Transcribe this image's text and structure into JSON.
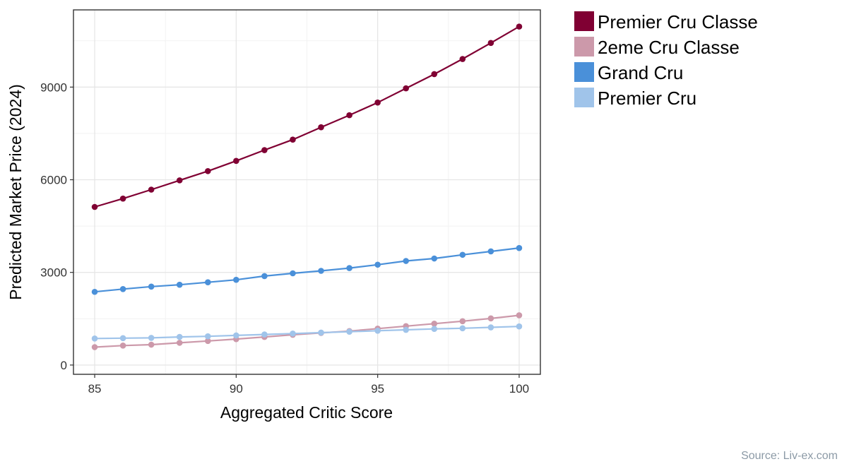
{
  "chart_data": {
    "type": "line",
    "xlabel": "Aggregated Critic Score",
    "ylabel": "Predicted Market Price (2024)",
    "xlim": [
      84.25,
      100.75
    ],
    "ylim": [
      -300,
      11500
    ],
    "x_ticks": [
      85,
      90,
      95,
      100
    ],
    "y_ticks": [
      0,
      3000,
      6000,
      9000
    ],
    "grid": true,
    "legend_position": "right",
    "x": [
      85,
      86,
      87,
      88,
      89,
      90,
      91,
      92,
      93,
      94,
      95,
      96,
      97,
      98,
      99,
      100
    ],
    "series": [
      {
        "name": "Premier Cru Classe",
        "color": "#800033",
        "values": [
          5120,
          5390,
          5680,
          5980,
          6280,
          6610,
          6960,
          7300,
          7700,
          8090,
          8500,
          8960,
          9420,
          9910,
          10430,
          10960
        ]
      },
      {
        "name": "2eme Cru Classe",
        "color": "#cc99aa",
        "values": [
          580,
          630,
          660,
          720,
          780,
          840,
          910,
          980,
          1040,
          1100,
          1180,
          1260,
          1340,
          1420,
          1510,
          1610
        ]
      },
      {
        "name": "Grand Cru",
        "color": "#4a90d9",
        "values": [
          2370,
          2460,
          2540,
          2600,
          2680,
          2760,
          2880,
          2970,
          3050,
          3140,
          3250,
          3370,
          3450,
          3570,
          3680,
          3790
        ]
      },
      {
        "name": "Premier Cru",
        "color": "#a0c4ea",
        "values": [
          860,
          870,
          880,
          910,
          930,
          960,
          990,
          1020,
          1050,
          1080,
          1110,
          1140,
          1170,
          1190,
          1220,
          1250
        ]
      }
    ]
  },
  "source": "Source: Liv-ex.com"
}
